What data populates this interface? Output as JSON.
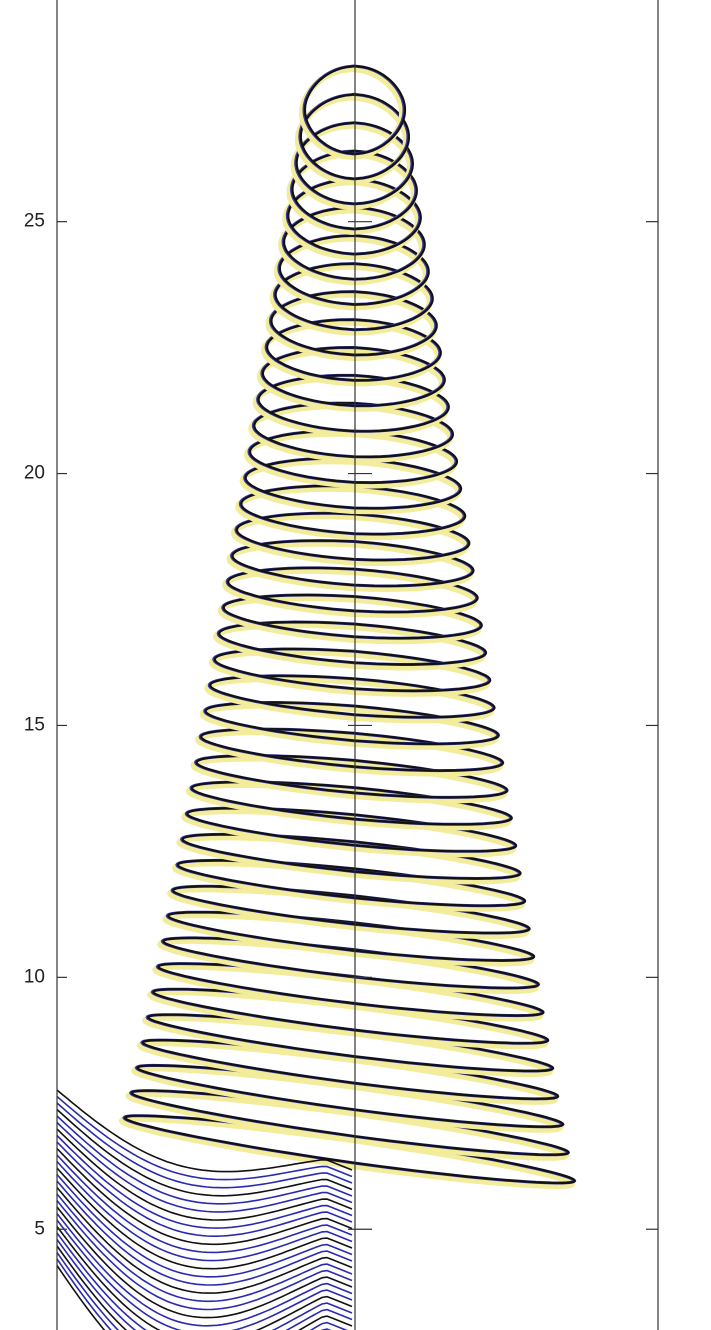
{
  "chart_data": {
    "type": "line",
    "ylim": [
      3,
      29.4
    ],
    "yticks": [
      5,
      10,
      15,
      20,
      25
    ]
  }
}
